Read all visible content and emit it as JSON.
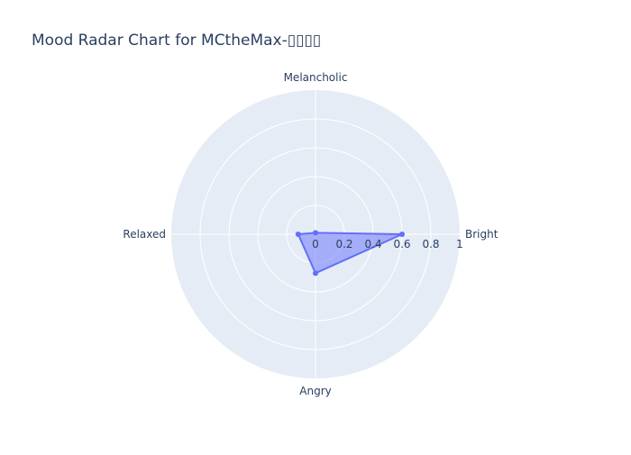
{
  "chart_data": {
    "type": "radar",
    "title": "Mood Radar Chart for MCtheMax-▯▯▯▯",
    "categories": [
      "Bright",
      "Melancholic",
      "Relaxed",
      "Angry"
    ],
    "series": [
      {
        "values": [
          0.6,
          0.01,
          0.12,
          0.27
        ],
        "color": "#636efa"
      }
    ],
    "radial_range": [
      0,
      1
    ],
    "radial_ticks": [
      "0",
      "0.2",
      "0.4",
      "0.6",
      "0.8",
      "1"
    ],
    "radial_tick_values": [
      0,
      0.2,
      0.4,
      0.6,
      0.8,
      1
    ],
    "grid": true,
    "background_color": "#e5ecf6",
    "grid_color": "#ffffff"
  }
}
